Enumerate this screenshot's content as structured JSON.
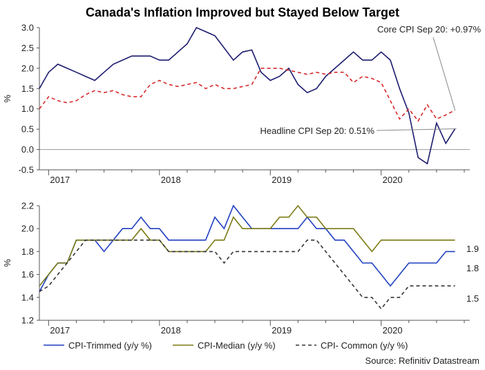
{
  "title": "Canada's Inflation Improved but Stayed Below Target",
  "source": "Source: Refinitiv Datastream",
  "colors": {
    "core": "#1a1a6e",
    "headline": "#d62728",
    "trimmed": "#1f3fbf",
    "median": "#7a7a14",
    "common": "#333333",
    "axis": "#555555",
    "zero_line": "#999999"
  },
  "chart_data": [
    {
      "type": "line",
      "title": "Canada's Inflation Improved but Stayed Below Target",
      "ylabel": "%",
      "xlabel": "",
      "x_tick_labels": [
        "2017",
        "2018",
        "2019",
        "2020"
      ],
      "ylim": [
        -0.5,
        3.0
      ],
      "yticks": [
        "3.0",
        "2.5",
        "2.0",
        "1.5",
        "1.0",
        "0.5",
        "0.0",
        "-0.5"
      ],
      "grid": false,
      "x": [
        "2016-12",
        "2017-01",
        "2017-02",
        "2017-03",
        "2017-04",
        "2017-05",
        "2017-06",
        "2017-07",
        "2017-08",
        "2017-09",
        "2017-10",
        "2017-11",
        "2017-12",
        "2018-01",
        "2018-02",
        "2018-03",
        "2018-04",
        "2018-05",
        "2018-06",
        "2018-07",
        "2018-08",
        "2018-09",
        "2018-10",
        "2018-11",
        "2018-12",
        "2019-01",
        "2019-02",
        "2019-03",
        "2019-04",
        "2019-05",
        "2019-06",
        "2019-07",
        "2019-08",
        "2019-09",
        "2019-10",
        "2019-11",
        "2019-12",
        "2020-01",
        "2020-02",
        "2020-03",
        "2020-04",
        "2020-05",
        "2020-06",
        "2020-07",
        "2020-08",
        "2020-09"
      ],
      "series": [
        {
          "style": "solid",
          "values": [
            1.5,
            1.9,
            2.1,
            2.0,
            1.9,
            1.8,
            1.7,
            1.9,
            2.1,
            2.2,
            2.3,
            2.3,
            2.3,
            2.2,
            2.2,
            2.4,
            2.6,
            3.0,
            2.9,
            2.8,
            2.5,
            2.2,
            2.4,
            2.45,
            1.9,
            1.7,
            1.8,
            2.0,
            1.6,
            1.4,
            1.5,
            1.8,
            2.0,
            2.2,
            2.4,
            2.2,
            2.2,
            2.4,
            2.2,
            1.5,
            0.9,
            -0.2,
            -0.35,
            0.65,
            0.15,
            0.51
          ]
        },
        {
          "style": "dashed",
          "values": [
            1.0,
            1.3,
            1.2,
            1.15,
            1.2,
            1.35,
            1.45,
            1.4,
            1.45,
            1.35,
            1.3,
            1.3,
            1.6,
            1.7,
            1.6,
            1.55,
            1.6,
            1.65,
            1.5,
            1.6,
            1.5,
            1.5,
            1.55,
            1.6,
            2.0,
            2.0,
            2.0,
            1.95,
            1.9,
            1.85,
            1.9,
            1.85,
            1.9,
            1.9,
            1.65,
            1.8,
            1.75,
            1.65,
            1.2,
            0.75,
            1.0,
            0.7,
            1.1,
            0.75,
            0.85,
            0.97
          ]
        }
      ],
      "annotations": [
        {
          "text": "Core CPI Sep 20: +0.97%"
        },
        {
          "text": "Headline CPI Sep 20: 0.51%"
        }
      ]
    },
    {
      "type": "line",
      "ylabel": "%",
      "xlabel": "",
      "x_tick_labels": [
        "2017",
        "2018",
        "2019",
        "2020"
      ],
      "ylim": [
        1.2,
        2.2
      ],
      "yticks": [
        "2.2",
        "2.0",
        "1.8",
        "1.6",
        "1.4",
        "1.2"
      ],
      "grid": false,
      "legend_position": "bottom",
      "x": [
        "2016-12",
        "2017-01",
        "2017-02",
        "2017-03",
        "2017-04",
        "2017-05",
        "2017-06",
        "2017-07",
        "2017-08",
        "2017-09",
        "2017-10",
        "2017-11",
        "2017-12",
        "2018-01",
        "2018-02",
        "2018-03",
        "2018-04",
        "2018-05",
        "2018-06",
        "2018-07",
        "2018-08",
        "2018-09",
        "2018-10",
        "2018-11",
        "2018-12",
        "2019-01",
        "2019-02",
        "2019-03",
        "2019-04",
        "2019-05",
        "2019-06",
        "2019-07",
        "2019-08",
        "2019-09",
        "2019-10",
        "2019-11",
        "2019-12",
        "2020-01",
        "2020-02",
        "2020-03",
        "2020-04",
        "2020-05",
        "2020-06",
        "2020-07",
        "2020-08",
        "2020-09"
      ],
      "series": [
        {
          "name": "CPI-Trimmed (y/y %)",
          "values": [
            1.45,
            1.6,
            1.7,
            1.7,
            1.9,
            1.9,
            1.9,
            1.8,
            1.9,
            2.0,
            2.0,
            2.1,
            2.0,
            2.0,
            1.9,
            1.9,
            1.9,
            1.9,
            1.9,
            2.1,
            2.0,
            2.2,
            2.1,
            2.0,
            2.0,
            2.0,
            2.0,
            2.0,
            2.0,
            2.1,
            2.0,
            2.0,
            1.9,
            1.9,
            1.8,
            1.7,
            1.7,
            1.6,
            1.5,
            1.6,
            1.7,
            1.7,
            1.7,
            1.7,
            1.8,
            1.8
          ],
          "end_label": "1.8"
        },
        {
          "name": "CPI-Median (y/y %)",
          "values": [
            1.5,
            1.6,
            1.7,
            1.7,
            1.9,
            1.9,
            1.9,
            1.9,
            1.9,
            1.9,
            1.9,
            2.0,
            1.9,
            1.9,
            1.8,
            1.8,
            1.8,
            1.8,
            1.8,
            1.9,
            1.9,
            2.1,
            2.0,
            2.0,
            2.0,
            2.0,
            2.1,
            2.1,
            2.2,
            2.1,
            2.1,
            2.0,
            2.0,
            2.0,
            2.0,
            1.9,
            1.8,
            1.9,
            1.9,
            1.9,
            1.9,
            1.9,
            1.9,
            1.9,
            1.9,
            1.9
          ],
          "end_label": "1.9"
        },
        {
          "name": "CPI- Common (y/y %)",
          "values": [
            1.45,
            1.5,
            1.6,
            1.7,
            1.8,
            1.9,
            1.9,
            1.9,
            1.9,
            1.9,
            1.9,
            1.9,
            1.9,
            1.9,
            1.8,
            1.8,
            1.8,
            1.8,
            1.8,
            1.8,
            1.7,
            1.8,
            1.8,
            1.8,
            1.8,
            1.8,
            1.8,
            1.8,
            1.8,
            1.9,
            1.9,
            1.8,
            1.7,
            1.6,
            1.5,
            1.4,
            1.4,
            1.3,
            1.4,
            1.4,
            1.5,
            1.5,
            1.5,
            1.5,
            1.5,
            1.5
          ],
          "end_label": "1.5"
        }
      ]
    }
  ]
}
